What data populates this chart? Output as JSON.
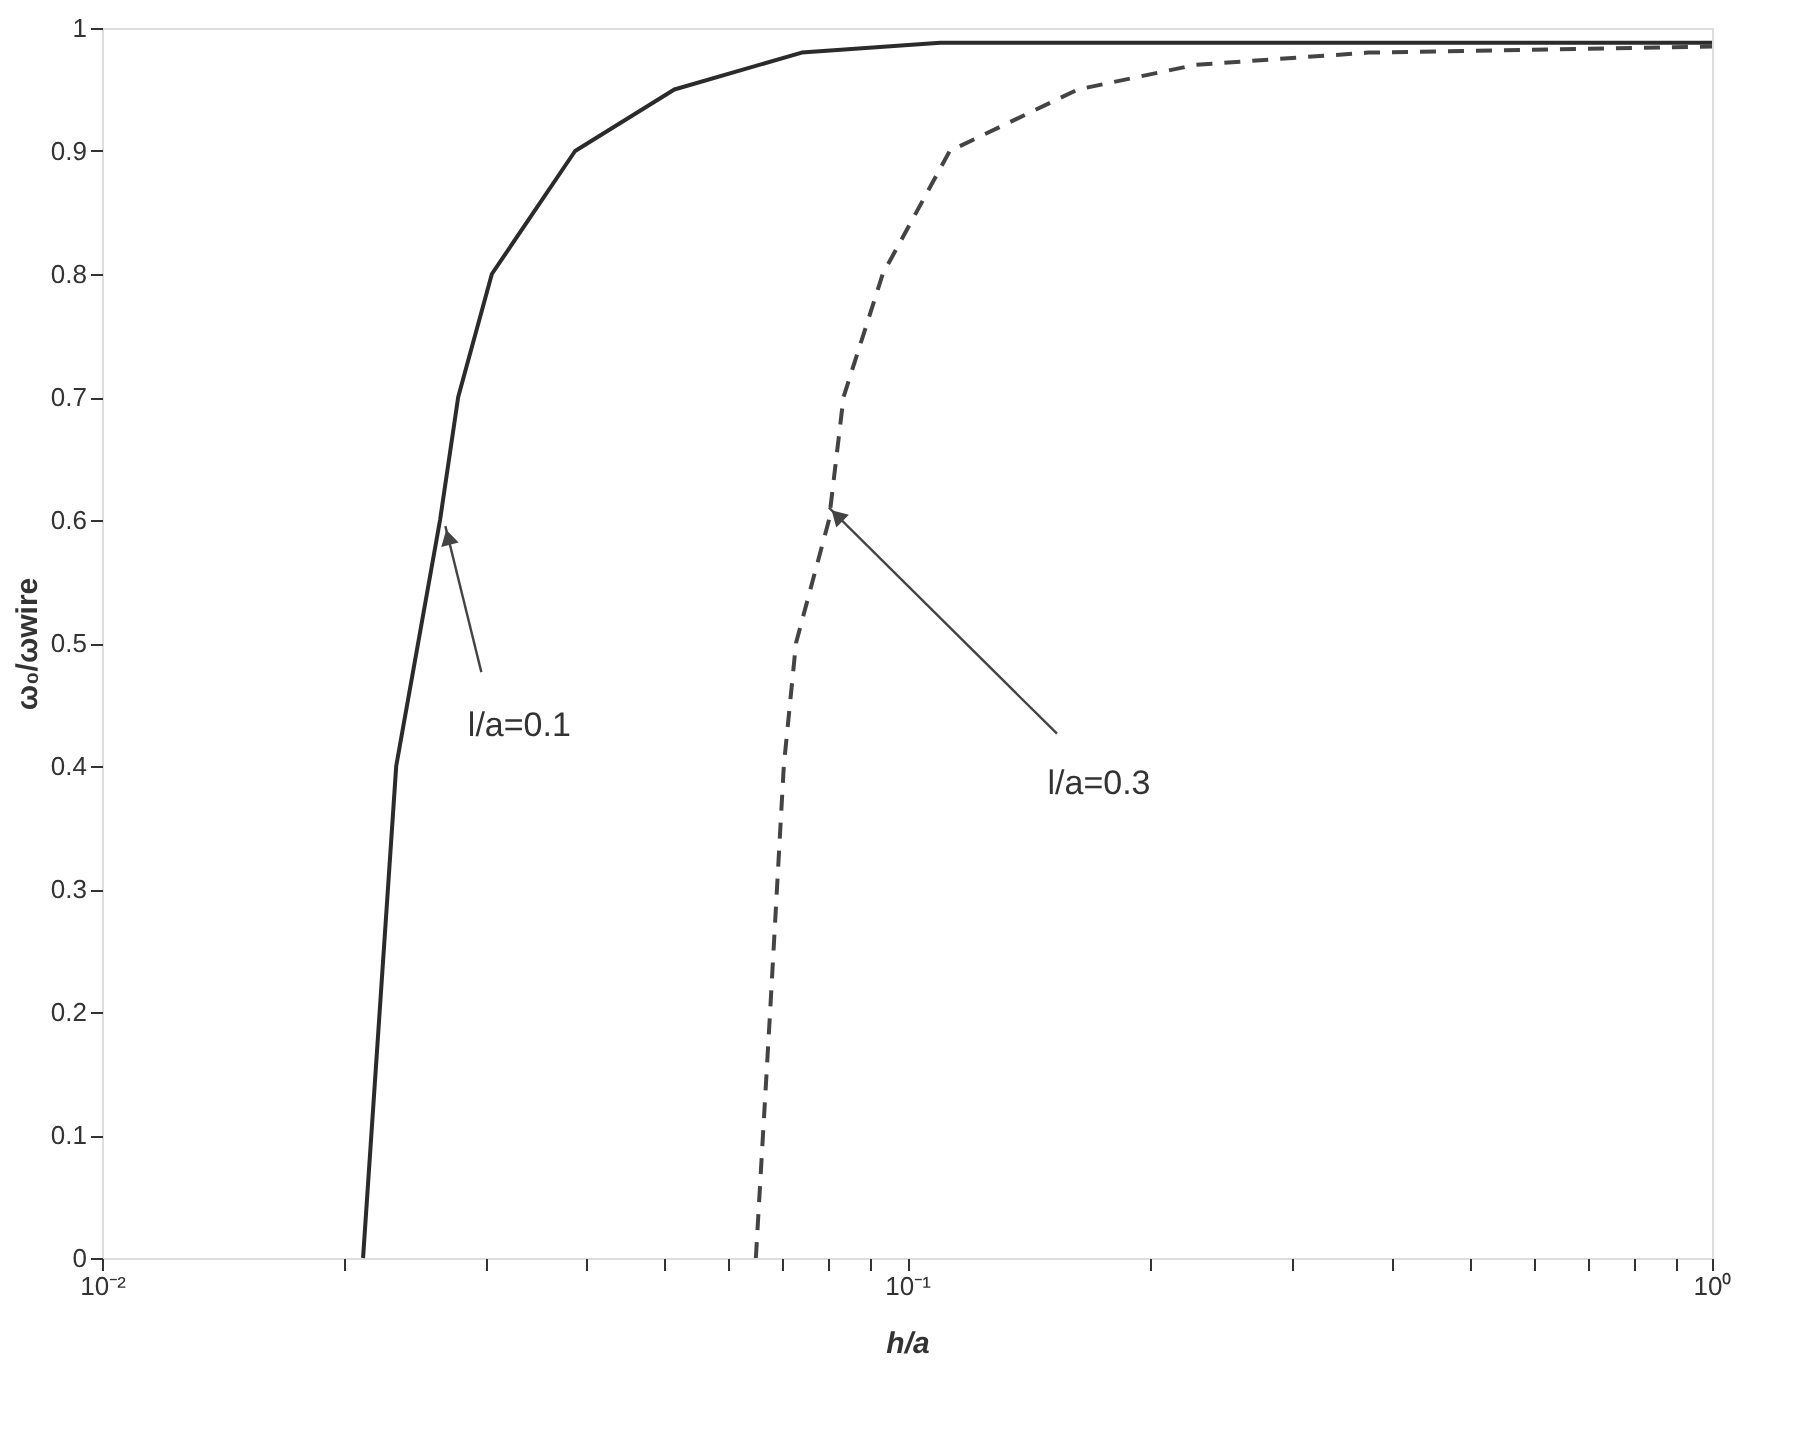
{
  "chart_data": {
    "type": "line",
    "xlabel": "h/a",
    "ylabel": "ω₀/ωwire",
    "log": "x",
    "grid": false,
    "marker": "none",
    "xlim": [
      0.01,
      1
    ],
    "ylim": [
      0,
      1
    ],
    "xticks": [
      {
        "value": 0.01,
        "label": "10⁻²"
      },
      {
        "value": 0.02,
        "label": null
      },
      {
        "value": 0.03,
        "label": null
      },
      {
        "value": 0.04,
        "label": null
      },
      {
        "value": 0.05,
        "label": null
      },
      {
        "value": 0.06,
        "label": null
      },
      {
        "value": 0.07,
        "label": null
      },
      {
        "value": 0.08,
        "label": null
      },
      {
        "value": 0.09,
        "label": null
      },
      {
        "value": 0.1,
        "label": "10⁻¹"
      },
      {
        "value": 0.2,
        "label": null
      },
      {
        "value": 0.3,
        "label": null
      },
      {
        "value": 0.4,
        "label": null
      },
      {
        "value": 0.5,
        "label": null
      },
      {
        "value": 0.6,
        "label": null
      },
      {
        "value": 0.7,
        "label": null
      },
      {
        "value": 0.8,
        "label": null
      },
      {
        "value": 0.9,
        "label": null
      },
      {
        "value": 1,
        "label": "10⁰"
      }
    ],
    "yticks": [
      0,
      0.1,
      0.2,
      0.3,
      0.4,
      0.5,
      0.6,
      0.7,
      0.8,
      0.9,
      1
    ],
    "series": [
      {
        "color": "#2b2b2b",
        "line_style": "solid",
        "x": [
          0.0211,
          0.0232,
          0.0263,
          0.0277,
          0.0305,
          0.0387,
          0.0514,
          0.074,
          0.11,
          1
        ],
        "values": [
          0,
          0.4,
          0.6,
          0.7,
          0.8,
          0.9,
          0.95,
          0.98,
          0.988,
          0.988
        ]
      },
      {
        "color": "#444444",
        "line_style": "dashed",
        "x": [
          0.0649,
          0.0676,
          0.0703,
          0.0728,
          0.08,
          0.0834,
          0.0933,
          0.113,
          0.163,
          0.228,
          0.374,
          1
        ],
        "values": [
          0,
          0.2,
          0.4,
          0.5,
          0.6,
          0.7,
          0.8,
          0.9,
          0.95,
          0.97,
          0.98,
          0.985
        ]
      }
    ],
    "annotations": [
      {
        "text": "l/a=0.1",
        "x": 0.0267,
        "y": 0.595
      },
      {
        "text": "l/a=0.3",
        "x": 0.08,
        "y": 0.61
      }
    ]
  }
}
